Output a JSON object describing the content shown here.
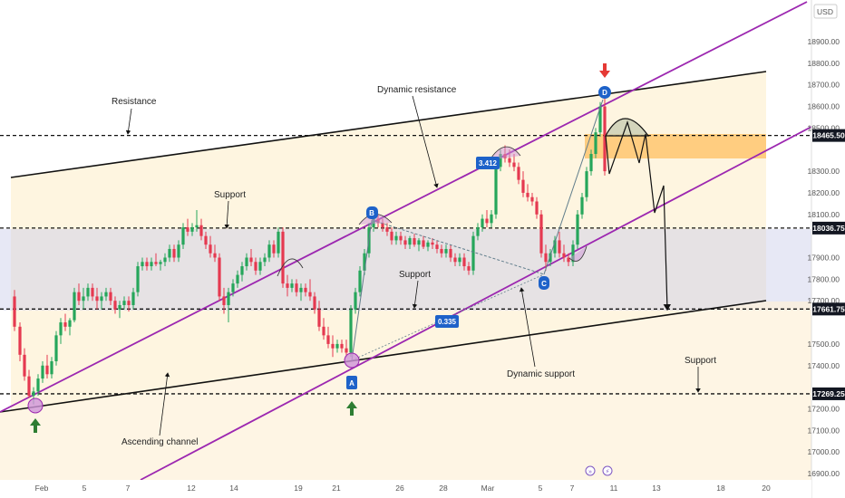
{
  "chart_data": {
    "type": "candlestick",
    "currency": "USD",
    "y_range": [
      16850,
      19100
    ],
    "y_ticks": [
      "16900.00",
      "17000.00",
      "17100.00",
      "17200.00",
      "17400.00",
      "17500.00",
      "17700.00",
      "17800.00",
      "17900.00",
      "18100.00",
      "18200.00",
      "18300.00",
      "18500.00",
      "18600.00",
      "18700.00",
      "18800.00",
      "18900.00"
    ],
    "x_ticks": [
      "Feb",
      "5",
      "7",
      "12",
      "14",
      "19",
      "21",
      "26",
      "28",
      "Mar",
      "5",
      "7",
      "11",
      "13",
      "18",
      "20"
    ],
    "price_levels": [
      {
        "label": "18465.50",
        "value": 18465.5
      },
      {
        "label": "18036.75",
        "value": 18036.75
      },
      {
        "label": "17661.75",
        "value": 17661.75
      },
      {
        "label": "17269.25",
        "value": 17269.25
      }
    ],
    "annotations": {
      "resistance": "Resistance",
      "dynamic_resistance": "Dynamic resistance",
      "support_upper": "Support",
      "support_mid": "Support",
      "support_right": "Support",
      "dynamic_support": "Dynamic support",
      "ascending_channel": "Ascending channel"
    },
    "points": {
      "A": "A",
      "B": "B",
      "C": "C",
      "D": "D"
    },
    "ratios": {
      "r1": "3.412",
      "r2": "0.335"
    },
    "candles": [
      [
        16,
        17720,
        17750,
        17560,
        17580
      ],
      [
        22,
        17580,
        17600,
        17420,
        17450
      ],
      [
        27,
        17450,
        17480,
        17330,
        17350
      ],
      [
        32,
        17350,
        17380,
        17250,
        17260
      ],
      [
        37,
        17260,
        17300,
        17220,
        17280
      ],
      [
        42,
        17280,
        17360,
        17260,
        17340
      ],
      [
        47,
        17340,
        17420,
        17320,
        17400
      ],
      [
        52,
        17400,
        17450,
        17340,
        17360
      ],
      [
        57,
        17360,
        17440,
        17340,
        17420
      ],
      [
        62,
        17420,
        17560,
        17400,
        17540
      ],
      [
        67,
        17540,
        17620,
        17500,
        17600
      ],
      [
        72,
        17600,
        17640,
        17560,
        17580
      ],
      [
        77,
        17580,
        17620,
        17540,
        17610
      ],
      [
        82,
        17610,
        17760,
        17600,
        17740
      ],
      [
        87,
        17740,
        17780,
        17680,
        17700
      ],
      [
        92,
        17700,
        17760,
        17660,
        17720
      ],
      [
        97,
        17720,
        17780,
        17700,
        17760
      ],
      [
        102,
        17760,
        17780,
        17700,
        17720
      ],
      [
        107,
        17720,
        17760,
        17660,
        17700
      ],
      [
        112,
        17700,
        17740,
        17660,
        17720
      ],
      [
        117,
        17720,
        17760,
        17700,
        17740
      ],
      [
        122,
        17740,
        17760,
        17680,
        17700
      ],
      [
        127,
        17700,
        17720,
        17640,
        17660
      ],
      [
        132,
        17660,
        17700,
        17620,
        17680
      ],
      [
        137,
        17680,
        17720,
        17660,
        17700
      ],
      [
        142,
        17700,
        17720,
        17650,
        17680
      ],
      [
        147,
        17680,
        17760,
        17660,
        17740
      ],
      [
        152,
        17740,
        17880,
        17720,
        17860
      ],
      [
        157,
        17860,
        17900,
        17840,
        17880
      ],
      [
        162,
        17880,
        17900,
        17840,
        17860
      ],
      [
        167,
        17860,
        17900,
        17840,
        17880
      ],
      [
        172,
        17880,
        17920,
        17860,
        17870
      ],
      [
        177,
        17870,
        17890,
        17840,
        17880
      ],
      [
        182,
        17880,
        17920,
        17860,
        17900
      ],
      [
        187,
        17900,
        17960,
        17880,
        17940
      ],
      [
        192,
        17940,
        17960,
        17880,
        17900
      ],
      [
        197,
        17900,
        17980,
        17880,
        17960
      ],
      [
        202,
        17960,
        18060,
        17940,
        18040
      ],
      [
        207,
        18040,
        18080,
        18000,
        18020
      ],
      [
        212,
        18020,
        18060,
        18000,
        18040
      ],
      [
        217,
        18040,
        18120,
        18020,
        18050
      ],
      [
        222,
        18050,
        18080,
        17980,
        18000
      ],
      [
        227,
        18000,
        18020,
        17940,
        17960
      ],
      [
        232,
        17960,
        18000,
        17900,
        17920
      ],
      [
        237,
        17920,
        17960,
        17880,
        17900
      ],
      [
        242,
        17900,
        17920,
        17700,
        17720
      ],
      [
        247,
        17720,
        17760,
        17640,
        17680
      ],
      [
        252,
        17680,
        17760,
        17600,
        17740
      ],
      [
        257,
        17740,
        17800,
        17720,
        17780
      ],
      [
        262,
        17780,
        17840,
        17760,
        17820
      ],
      [
        267,
        17820,
        17880,
        17790,
        17860
      ],
      [
        272,
        17860,
        17920,
        17840,
        17900
      ],
      [
        277,
        17900,
        17940,
        17860,
        17880
      ],
      [
        282,
        17880,
        17900,
        17820,
        17840
      ],
      [
        287,
        17840,
        17900,
        17820,
        17880
      ],
      [
        292,
        17880,
        17920,
        17860,
        17900
      ],
      [
        297,
        17900,
        17980,
        17880,
        17960
      ],
      [
        302,
        17960,
        17980,
        17900,
        17920
      ],
      [
        307,
        17920,
        18040,
        17900,
        18020
      ],
      [
        312,
        18020,
        18040,
        17760,
        17780
      ],
      [
        317,
        17780,
        17820,
        17720,
        17760
      ],
      [
        322,
        17760,
        17800,
        17740,
        17780
      ],
      [
        327,
        17780,
        17800,
        17720,
        17740
      ],
      [
        332,
        17740,
        17780,
        17700,
        17760
      ],
      [
        337,
        17760,
        17780,
        17720,
        17740
      ],
      [
        342,
        17740,
        17800,
        17700,
        17720
      ],
      [
        347,
        17720,
        17740,
        17640,
        17660
      ],
      [
        352,
        17660,
        17700,
        17560,
        17580
      ],
      [
        357,
        17580,
        17620,
        17520,
        17540
      ],
      [
        362,
        17540,
        17580,
        17480,
        17500
      ],
      [
        367,
        17500,
        17540,
        17440,
        17480
      ],
      [
        372,
        17480,
        17520,
        17460,
        17500
      ],
      [
        377,
        17500,
        17520,
        17460,
        17480
      ],
      [
        382,
        17480,
        17520,
        17440,
        17460
      ],
      [
        387,
        17460,
        17680,
        17440,
        17660
      ],
      [
        392,
        17660,
        17760,
        17640,
        17740
      ],
      [
        397,
        17740,
        17860,
        17720,
        17840
      ],
      [
        402,
        17840,
        17940,
        17820,
        17920
      ],
      [
        407,
        17920,
        18060,
        17900,
        18040
      ],
      [
        412,
        18040,
        18100,
        18020,
        18080
      ],
      [
        417,
        18080,
        18100,
        18040,
        18060
      ],
      [
        422,
        18060,
        18080,
        18020,
        18040
      ],
      [
        427,
        18040,
        18060,
        18000,
        18020
      ],
      [
        432,
        18020,
        18040,
        17960,
        17980
      ],
      [
        437,
        17980,
        18020,
        17960,
        18000
      ],
      [
        442,
        18000,
        18020,
        17960,
        17980
      ],
      [
        447,
        17980,
        18000,
        17940,
        17960
      ],
      [
        452,
        17960,
        18000,
        17940,
        17990
      ],
      [
        457,
        17990,
        18010,
        17950,
        17960
      ],
      [
        462,
        17960,
        17990,
        17930,
        17980
      ],
      [
        467,
        17980,
        18000,
        17940,
        17950
      ],
      [
        472,
        17950,
        17980,
        17930,
        17970
      ],
      [
        477,
        17970,
        17990,
        17940,
        17960
      ],
      [
        482,
        17960,
        17980,
        17920,
        17940
      ],
      [
        487,
        17940,
        17960,
        17900,
        17920
      ],
      [
        492,
        17920,
        17960,
        17900,
        17940
      ],
      [
        497,
        17940,
        17960,
        17880,
        17900
      ],
      [
        502,
        17900,
        17920,
        17860,
        17880
      ],
      [
        507,
        17880,
        17920,
        17860,
        17900
      ],
      [
        512,
        17900,
        17920,
        17840,
        17860
      ],
      [
        517,
        17860,
        17880,
        17820,
        17840
      ],
      [
        522,
        17840,
        18020,
        17820,
        18000
      ],
      [
        527,
        18000,
        18060,
        17980,
        18040
      ],
      [
        532,
        18040,
        18100,
        18020,
        18080
      ],
      [
        537,
        18080,
        18120,
        18040,
        18060
      ],
      [
        542,
        18060,
        18120,
        18040,
        18100
      ],
      [
        547,
        18100,
        18340,
        18080,
        18320
      ],
      [
        552,
        18320,
        18400,
        18300,
        18380
      ],
      [
        557,
        18380,
        18420,
        18340,
        18360
      ],
      [
        562,
        18360,
        18400,
        18320,
        18340
      ],
      [
        567,
        18340,
        18380,
        18300,
        18320
      ],
      [
        572,
        18320,
        18340,
        18240,
        18260
      ],
      [
        577,
        18260,
        18300,
        18180,
        18200
      ],
      [
        582,
        18200,
        18240,
        18160,
        18180
      ],
      [
        587,
        18180,
        18200,
        18140,
        18160
      ],
      [
        592,
        18160,
        18180,
        18080,
        18100
      ],
      [
        597,
        18100,
        18120,
        17900,
        17920
      ],
      [
        602,
        17920,
        17960,
        17840,
        17880
      ],
      [
        607,
        17880,
        17940,
        17860,
        17920
      ],
      [
        612,
        17920,
        18000,
        17900,
        17980
      ],
      [
        617,
        17980,
        18020,
        17900,
        17920
      ],
      [
        622,
        17920,
        17960,
        17880,
        17900
      ],
      [
        627,
        17900,
        17920,
        17860,
        17880
      ],
      [
        632,
        17880,
        17980,
        17860,
        17960
      ],
      [
        637,
        17960,
        18120,
        17940,
        18100
      ],
      [
        642,
        18100,
        18200,
        18080,
        18180
      ],
      [
        647,
        18180,
        18320,
        18160,
        18300
      ],
      [
        652,
        18300,
        18400,
        18280,
        18380
      ],
      [
        657,
        18380,
        18500,
        18360,
        18480
      ],
      [
        662,
        18480,
        18620,
        18460,
        18600
      ],
      [
        667,
        18600,
        18640,
        18280,
        18300
      ]
    ]
  }
}
